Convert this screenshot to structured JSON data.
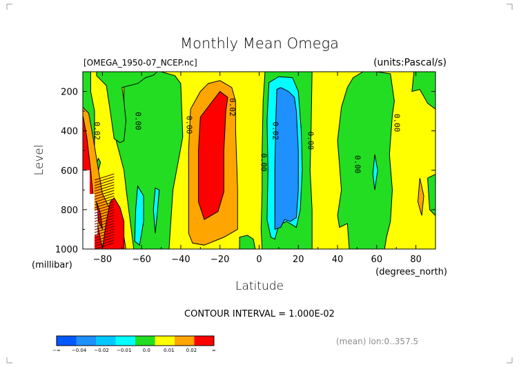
{
  "chart_data": {
    "type": "contour",
    "title": "Monthly Mean Omega",
    "file_label": "[OMEGA_1950-07_NCEP.nc]",
    "units_label": "(units:Pascal/s)",
    "xlabel": "Latitude",
    "x_units": "(degrees_north)",
    "ylabel": "Level",
    "y_units": "(millibar)",
    "xlim": [
      -90,
      90
    ],
    "ylim": [
      1000,
      100
    ],
    "x_ticks": [
      -80,
      -60,
      -40,
      -20,
      0,
      20,
      40,
      60,
      80
    ],
    "y_ticks": [
      200,
      400,
      600,
      800,
      1000
    ],
    "contour_interval_label": "CONTOUR INTERVAL = 1.000E-02",
    "mean_label": "(mean) lon:0..357.5",
    "contour_labels": [
      {
        "text": "0.02",
        "lat": -84,
        "lev": 400
      },
      {
        "text": "0.00",
        "lat": -63,
        "lev": 350
      },
      {
        "text": "0.00",
        "lat": -37,
        "lev": 370
      },
      {
        "text": "0.02",
        "lat": -15,
        "lev": 280
      },
      {
        "text": "0.00",
        "lat": 1,
        "lev": 560
      },
      {
        "text": "0.02",
        "lat": 7,
        "lev": 400
      },
      {
        "text": "0.00",
        "lat": 25,
        "lev": 450
      },
      {
        "text": "0.00",
        "lat": 49,
        "lev": 570
      },
      {
        "text": "0.00",
        "lat": 69,
        "lev": 360
      }
    ],
    "levels": [
      {
        "label": "-∞",
        "color": "#0059ff"
      },
      {
        "label": "-0.04",
        "color": "#1e90ff"
      },
      {
        "label": "-0.02",
        "color": "#00c8ff"
      },
      {
        "label": "-0.01",
        "color": "#00ffff"
      },
      {
        "label": "0.0",
        "color": "#22dd22"
      },
      {
        "label": "0.01",
        "color": "#ffff00"
      },
      {
        "label": "0.02",
        "color": "#ffa500"
      },
      {
        "label": "∞",
        "color": "#ff0000"
      }
    ],
    "colorbar_edges": [
      "-∞",
      "-0.04",
      "-0.02",
      "-0.01",
      "0.0",
      "0.01",
      "0.02",
      "∞"
    ],
    "background_color": "#ffff00",
    "regions": [
      {
        "band": "0.0",
        "color": "#22dd22",
        "points": [
          [
            -69,
            100
          ],
          [
            -69,
            350
          ],
          [
            -73,
            450
          ],
          [
            -69,
            600
          ],
          [
            -68,
            690
          ],
          [
            -64,
            1000
          ],
          [
            -46,
            1000
          ],
          [
            -44,
            700
          ],
          [
            -41,
            540
          ],
          [
            -39,
            430
          ],
          [
            -40,
            160
          ],
          [
            -43,
            120
          ],
          [
            -50,
            100
          ]
        ]
      },
      {
        "band": "0.0",
        "color": "#22dd22",
        "points": [
          [
            -83,
            100
          ],
          [
            -83,
            120
          ],
          [
            -80,
            150
          ],
          [
            -78,
            170
          ],
          [
            -76,
            300
          ],
          [
            -74,
            440
          ],
          [
            -71,
            460
          ],
          [
            -69,
            450
          ],
          [
            -68,
            350
          ],
          [
            -69,
            250
          ],
          [
            -70,
            180
          ],
          [
            -62,
            160
          ],
          [
            -58,
            130
          ],
          [
            -54,
            118
          ],
          [
            -52,
            100
          ]
        ]
      },
      {
        "band": "0.0",
        "color": "#22dd22",
        "points": [
          [
            -10,
            940
          ],
          [
            -6,
            930
          ],
          [
            -3,
            950
          ],
          [
            -2,
            1000
          ],
          [
            -10,
            1000
          ]
        ]
      },
      {
        "band": "0.0",
        "color": "#22dd22",
        "points": [
          [
            3,
            100
          ],
          [
            2,
            250
          ],
          [
            1.5,
            500
          ],
          [
            1.5,
            700
          ],
          [
            1,
            900
          ],
          [
            1.5,
            1000
          ],
          [
            27,
            1000
          ],
          [
            27,
            800
          ],
          [
            26,
            600
          ],
          [
            26.5,
            400
          ],
          [
            27,
            100
          ]
        ]
      },
      {
        "band": "0.0",
        "color": "#22dd22",
        "points": [
          [
            42,
            280
          ],
          [
            40,
            450
          ],
          [
            42,
            700
          ],
          [
            40,
            830
          ],
          [
            41,
            890
          ],
          [
            45,
            870
          ],
          [
            46,
            1000
          ],
          [
            64,
            1000
          ],
          [
            65,
            940
          ],
          [
            67,
            860
          ],
          [
            68,
            700
          ],
          [
            66.5,
            520
          ],
          [
            68,
            320
          ],
          [
            69,
            250
          ],
          [
            67,
            110
          ],
          [
            60,
            100
          ],
          [
            53,
            100
          ],
          [
            48,
            130
          ],
          [
            45,
            180
          ]
        ]
      },
      {
        "band": "0.0",
        "color": "#22dd22",
        "points": [
          [
            79,
            100
          ],
          [
            78,
            200
          ],
          [
            82,
            190
          ],
          [
            86,
            260
          ],
          [
            90,
            290
          ],
          [
            90,
            100
          ]
        ]
      },
      {
        "band": "0.0",
        "color": "#22dd22",
        "points": [
          [
            86,
            640
          ],
          [
            90,
            620
          ],
          [
            90,
            830
          ],
          [
            87,
            800
          ]
        ]
      },
      {
        "band": "0.0",
        "color": "#22dd22",
        "points": [
          [
            -90,
            100
          ],
          [
            -90,
            600
          ],
          [
            -85,
            575
          ],
          [
            -84,
            500
          ],
          [
            -84,
            300
          ],
          [
            -86,
            200
          ],
          [
            -86,
            100
          ]
        ]
      },
      {
        "band": "0.0",
        "color": "#22dd22",
        "points": [
          [
            -82,
            540
          ],
          [
            -81,
            560
          ],
          [
            -82,
            600
          ],
          [
            -83,
            560
          ]
        ]
      },
      {
        "band": "-0.01",
        "color": "#00ffff",
        "points": [
          [
            5,
            155
          ],
          [
            4,
            350
          ],
          [
            4.5,
            600
          ],
          [
            4,
            850
          ],
          [
            6,
            940
          ],
          [
            8,
            950
          ],
          [
            10,
            880
          ],
          [
            14,
            860
          ],
          [
            19,
            890
          ],
          [
            21,
            800
          ],
          [
            22,
            600
          ],
          [
            21.5,
            400
          ],
          [
            20,
            200
          ],
          [
            17,
            130
          ],
          [
            10,
            125
          ]
        ]
      },
      {
        "band": "-0.01",
        "color": "#00ffff",
        "points": [
          [
            -62,
            680
          ],
          [
            -63,
            800
          ],
          [
            -63.5,
            960
          ],
          [
            -61,
            980
          ],
          [
            -59,
            860
          ],
          [
            -59,
            730
          ]
        ]
      },
      {
        "band": "-0.01",
        "color": "#00ffff",
        "points": [
          [
            -53,
            690
          ],
          [
            -54,
            800
          ],
          [
            -53,
            920
          ],
          [
            -52,
            820
          ],
          [
            -51,
            700
          ]
        ]
      },
      {
        "band": "-0.01",
        "color": "#00ffff",
        "points": [
          [
            59,
            520
          ],
          [
            58,
            620
          ],
          [
            59,
            700
          ],
          [
            60.5,
            600
          ]
        ]
      },
      {
        "band": "-0.02",
        "color": "#1e90ff",
        "points": [
          [
            9,
            190
          ],
          [
            8.5,
            350
          ],
          [
            8,
            600
          ],
          [
            8,
            900
          ],
          [
            11,
            890
          ],
          [
            13,
            850
          ],
          [
            16,
            860
          ],
          [
            19,
            840
          ],
          [
            20,
            700
          ],
          [
            20,
            500
          ],
          [
            19,
            300
          ],
          [
            18,
            230
          ],
          [
            15,
            200
          ],
          [
            11,
            180
          ]
        ]
      },
      {
        "band": "0.01",
        "color": "#ffa500",
        "points": [
          [
            -26,
            160
          ],
          [
            -30,
            200
          ],
          [
            -35,
            290
          ],
          [
            -36,
            500
          ],
          [
            -36,
            920
          ],
          [
            -34,
            970
          ],
          [
            -28,
            980
          ],
          [
            -18,
            940
          ],
          [
            -11,
            900
          ],
          [
            -11,
            700
          ],
          [
            -12,
            400
          ],
          [
            -12,
            250
          ],
          [
            -14,
            180
          ],
          [
            -20,
            145
          ]
        ]
      },
      {
        "band": "0.01",
        "color": "#ffa500",
        "points": [
          [
            -90,
            280
          ],
          [
            -90,
            1000
          ],
          [
            -68,
            1000
          ],
          [
            -70,
            880
          ],
          [
            -75,
            820
          ],
          [
            -80,
            720
          ],
          [
            -82,
            600
          ],
          [
            -85,
            420
          ],
          [
            -87,
            310
          ]
        ]
      },
      {
        "band": "0.01",
        "color": "#ffa500",
        "points": [
          [
            82,
            640
          ],
          [
            81,
            760
          ],
          [
            83,
            830
          ],
          [
            84,
            730
          ]
        ]
      },
      {
        "band": "0.02",
        "color": "#ff0000",
        "points": [
          [
            -20,
            200
          ],
          [
            -30,
            330
          ],
          [
            -31,
            500
          ],
          [
            -31,
            760
          ],
          [
            -28,
            850
          ],
          [
            -21,
            810
          ],
          [
            -18,
            710
          ],
          [
            -18,
            500
          ],
          [
            -17,
            300
          ],
          [
            -16,
            230
          ]
        ]
      },
      {
        "band": "0.02",
        "color": "#ff0000",
        "points": [
          [
            -90,
            320
          ],
          [
            -90,
            1000
          ],
          [
            -80,
            1000
          ],
          [
            -82,
            900
          ],
          [
            -84,
            800
          ],
          [
            -86,
            600
          ],
          [
            -88,
            430
          ]
        ]
      },
      {
        "band": "0.02",
        "color": "#ff0000",
        "points": [
          [
            -80,
            1000
          ],
          [
            -78,
            860
          ],
          [
            -76,
            760
          ],
          [
            -74,
            740
          ],
          [
            -71,
            790
          ],
          [
            -69,
            860
          ],
          [
            -69,
            1000
          ]
        ]
      },
      {
        "band": "0.02",
        "color": "#ff0000",
        "points": [
          [
            -83,
            760
          ],
          [
            -81,
            820
          ],
          [
            -80,
            900
          ],
          [
            -82,
            860
          ]
        ]
      }
    ],
    "missing": [
      {
        "lat": [
          -90,
          -86.5
        ],
        "lev": [
          600,
          1000
        ]
      },
      {
        "lat": [
          -86.5,
          -84
        ],
        "lev": [
          720,
          1000
        ]
      },
      {
        "lat": [
          -84,
          -82.5
        ],
        "lev": [
          800,
          930
        ]
      }
    ]
  }
}
